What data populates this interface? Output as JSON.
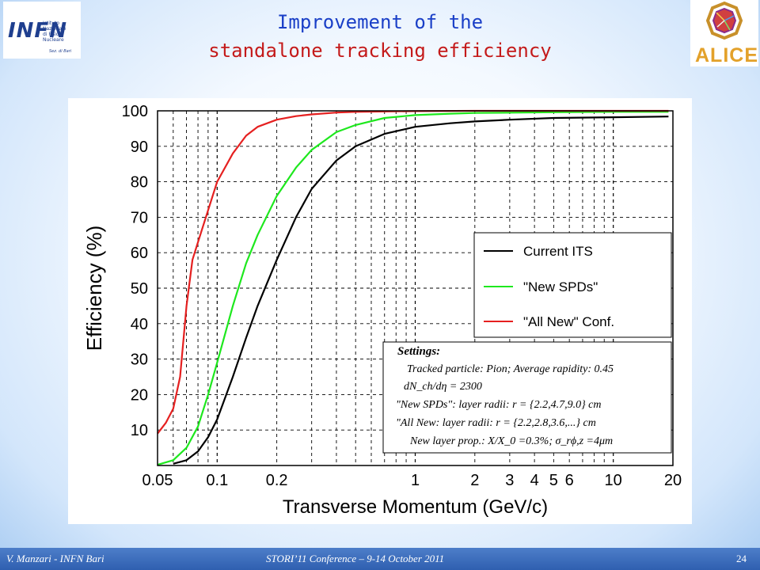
{
  "header": {
    "title_line1": "Improvement of the",
    "title_line2": "standalone tracking efficiency"
  },
  "logos": {
    "infn": {
      "name": "INFN",
      "subtitle_lines": [
        "Istituto Nazionale",
        "di Fisica Nucleare"
      ],
      "section": "Sez. di Bari"
    },
    "alice": {
      "name": "ALICE"
    }
  },
  "footer": {
    "left": "V. Manzari - INFN Bari",
    "center": "STORI’11 Conference – 9-14 October 2011",
    "page": "24"
  },
  "chart_data": {
    "type": "line",
    "xlabel": "Transverse Momentum (GeV/c)",
    "ylabel": "Efficiency (%)",
    "xscale": "log",
    "xlim": [
      0.05,
      20
    ],
    "ylim": [
      0,
      100
    ],
    "x_ticks": [
      0.05,
      0.1,
      0.2,
      1,
      2,
      3,
      4,
      5,
      6,
      10,
      20
    ],
    "x_tick_labels": [
      "0.05",
      "0.1",
      "0.2",
      "1",
      "2",
      "3",
      "4",
      "5",
      "6",
      "10",
      "20"
    ],
    "y_ticks": [
      10,
      20,
      30,
      40,
      50,
      60,
      70,
      80,
      90,
      100
    ],
    "y_tick_labels": [
      "10",
      "20",
      "30",
      "40",
      "50",
      "60",
      "70",
      "80",
      "90",
      "100"
    ],
    "grid": true,
    "legend_position": "right-middle",
    "series": [
      {
        "name": "Current ITS",
        "color": "#000000",
        "x": [
          0.06,
          0.07,
          0.08,
          0.09,
          0.1,
          0.12,
          0.14,
          0.16,
          0.2,
          0.25,
          0.3,
          0.4,
          0.5,
          0.7,
          1,
          1.5,
          2,
          3,
          5,
          10,
          19
        ],
        "y": [
          0.5,
          1.5,
          4,
          8,
          13,
          25,
          36,
          45,
          58,
          70,
          78,
          86,
          90,
          93.5,
          95.5,
          96.5,
          97,
          97.5,
          98,
          98.2,
          98.4
        ]
      },
      {
        "name": "\"New SPDs\"",
        "color": "#1ee81e",
        "x": [
          0.05,
          0.06,
          0.07,
          0.08,
          0.09,
          0.1,
          0.12,
          0.14,
          0.16,
          0.2,
          0.25,
          0.3,
          0.4,
          0.5,
          0.7,
          1,
          1.5,
          2,
          5,
          10,
          19
        ],
        "y": [
          0.2,
          1.5,
          5,
          11,
          20,
          29,
          45,
          57,
          65,
          76,
          84,
          89,
          94,
          96,
          98,
          98.8,
          99.2,
          99.4,
          99.6,
          99.7,
          99.7
        ]
      },
      {
        "name": "\"All New\" Conf.",
        "color": "#e52020",
        "x": [
          0.05,
          0.055,
          0.06,
          0.065,
          0.07,
          0.075,
          0.08,
          0.09,
          0.1,
          0.12,
          0.14,
          0.16,
          0.2,
          0.25,
          0.3,
          0.4,
          0.5,
          1,
          2,
          5,
          10,
          19
        ],
        "y": [
          9,
          12,
          16,
          25,
          45,
          58,
          63,
          72,
          80,
          88,
          93,
          95.5,
          97.5,
          98.5,
          99,
          99.5,
          99.7,
          99.9,
          100,
          100,
          100,
          100
        ]
      }
    ],
    "settings_box": {
      "heading": "Settings:",
      "lines": [
        "Tracked particle: Pion;   Average rapidity: 0.45",
        "dN_ch/dη = 2300",
        "\"New SPDs\": layer radii: r = {2.2,4.7,9.0} cm",
        "\"All New: layer radii: r = {2.2,2.8,3.6,...} cm",
        "New layer prop.: X/X_0 =0.3%;  σ_rϕ,z =4μm"
      ]
    }
  }
}
